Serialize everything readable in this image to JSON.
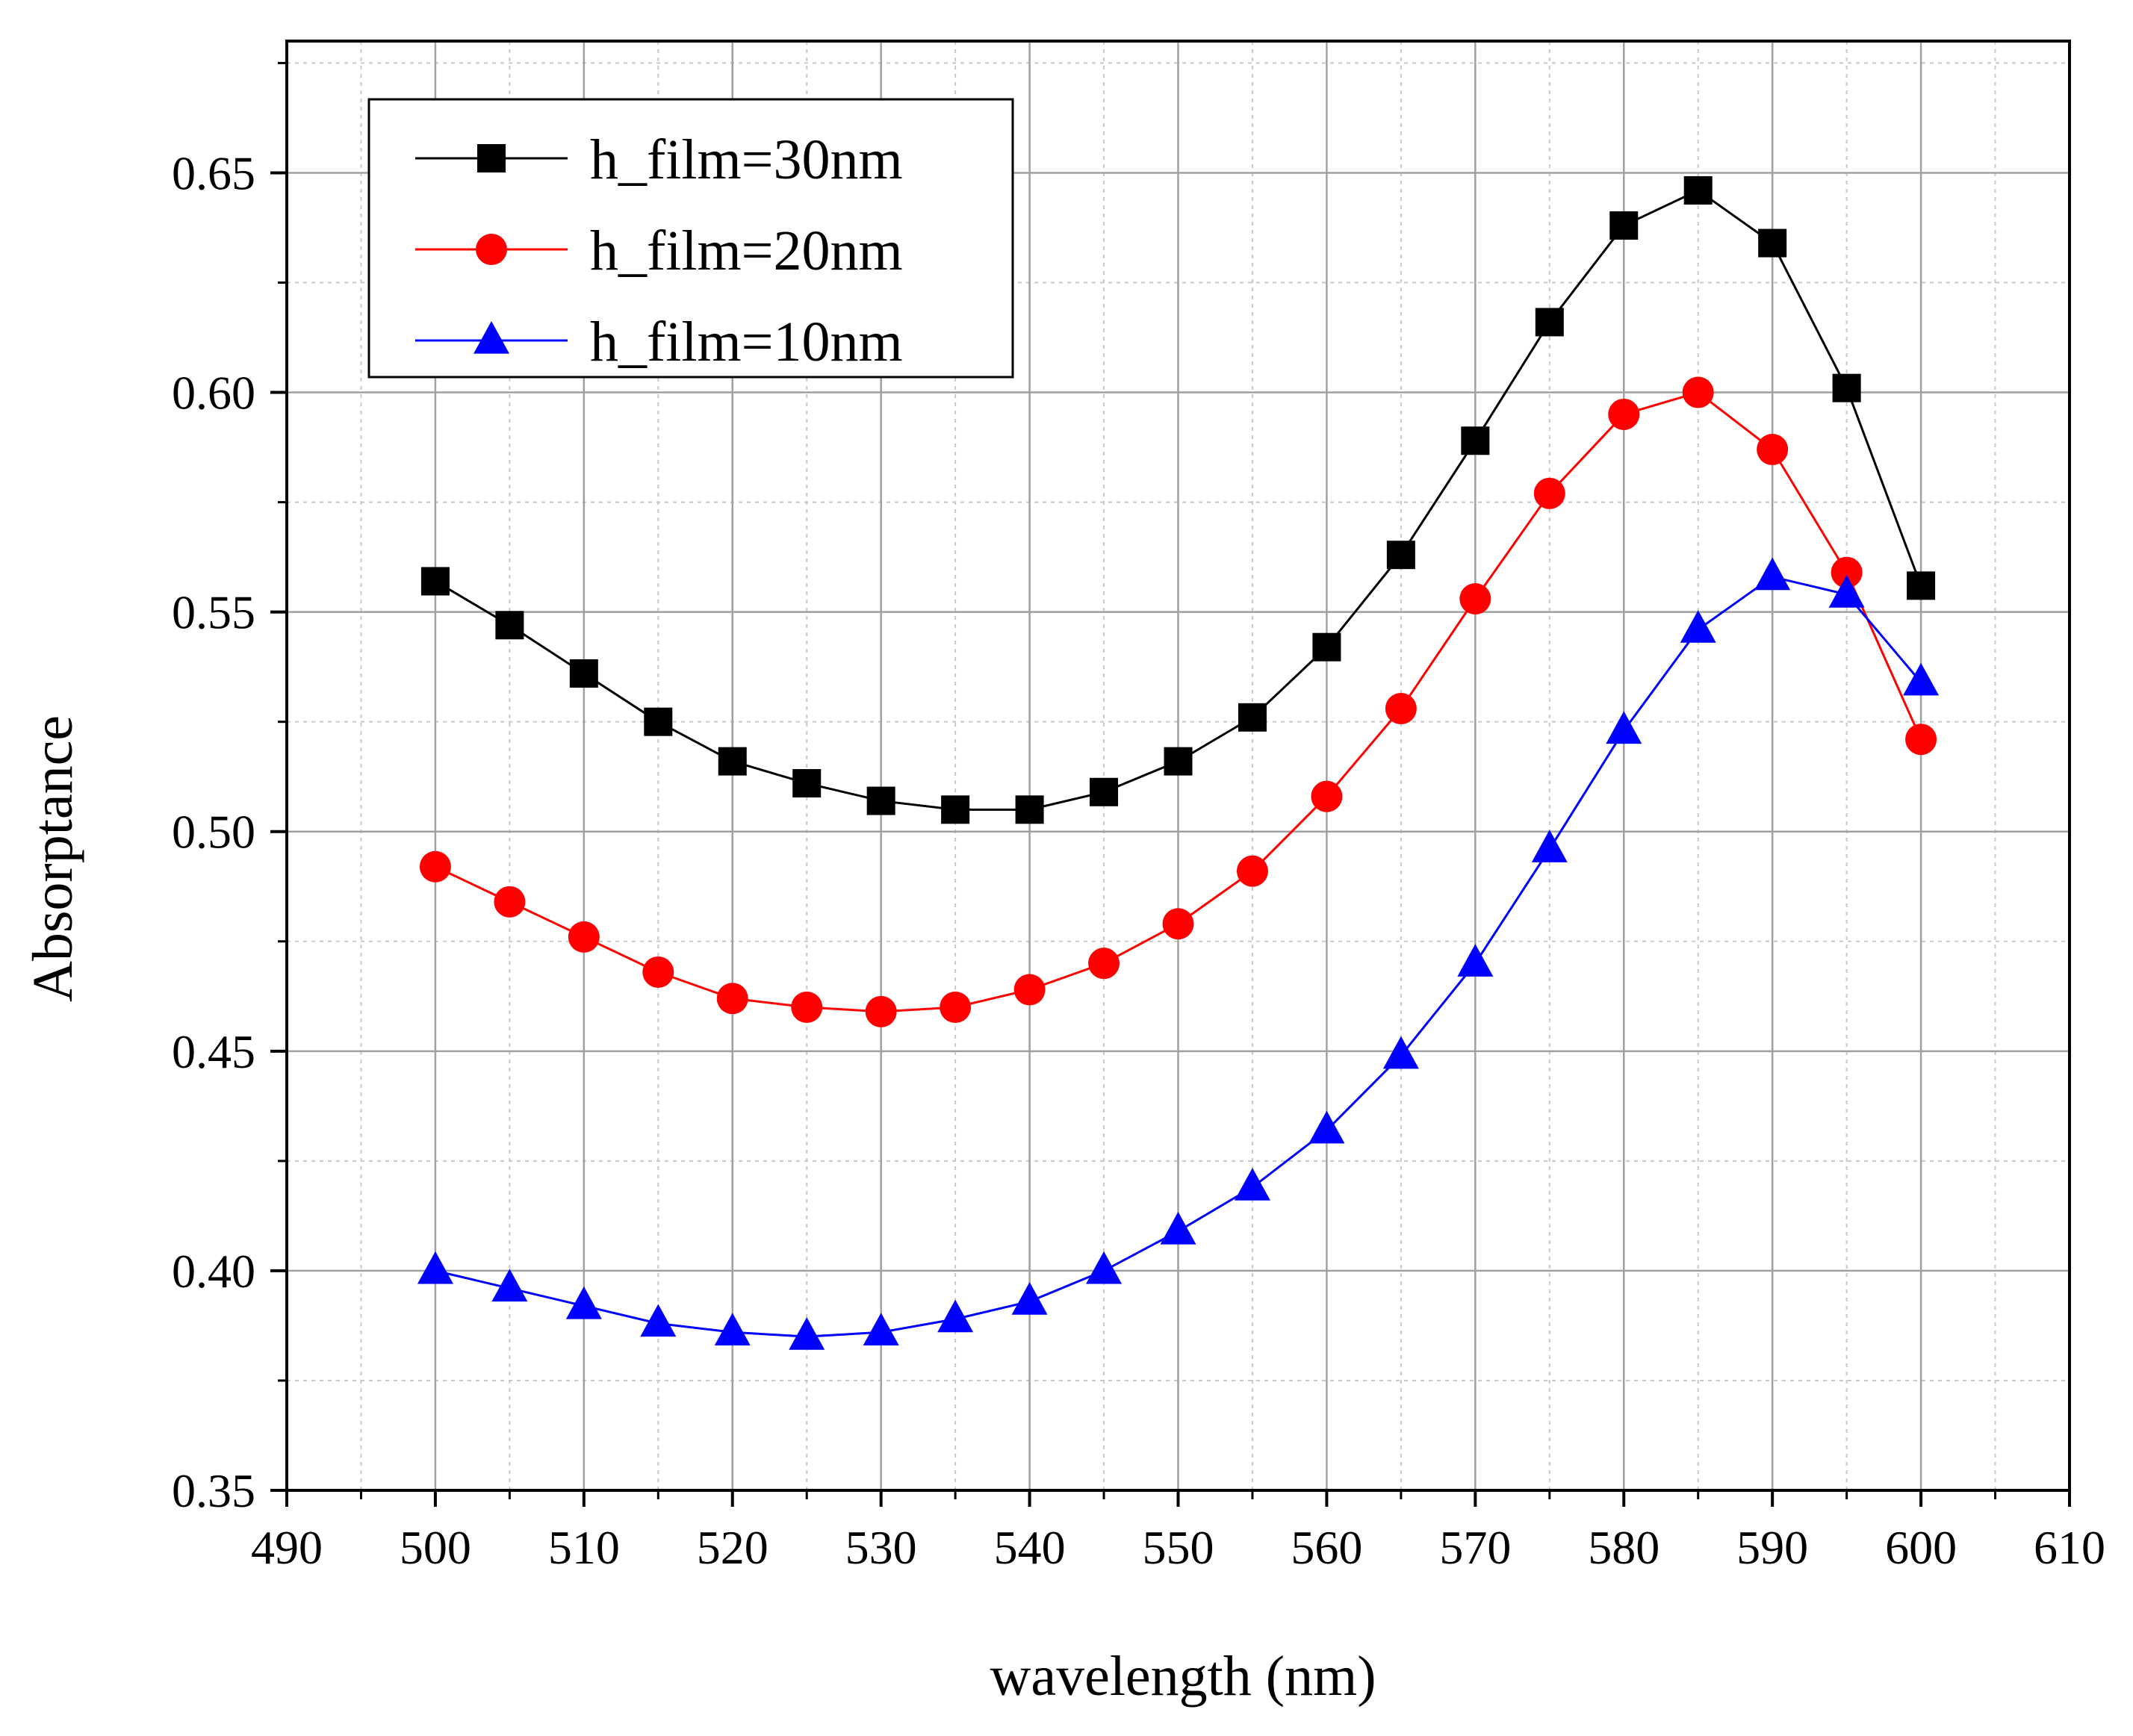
{
  "chart_data": {
    "type": "line",
    "title": "",
    "xlabel": "wavelength (nm)",
    "ylabel": "Absorptance",
    "xlim": [
      490,
      610
    ],
    "ylim": [
      0.35,
      0.68
    ],
    "xticks": [
      490,
      500,
      510,
      520,
      530,
      540,
      550,
      560,
      570,
      580,
      590,
      600,
      610
    ],
    "xtick_labels": [
      "490",
      "500",
      "510",
      "520",
      "530",
      "540",
      "550",
      "560",
      "570",
      "580",
      "590",
      "600",
      "610"
    ],
    "yticks": [
      0.35,
      0.4,
      0.45,
      0.5,
      0.55,
      0.6,
      0.65
    ],
    "ytick_labels": [
      "0.35",
      "0.40",
      "0.45",
      "0.50",
      "0.55",
      "0.60",
      "0.65"
    ],
    "grid": true,
    "legend_position": "top-left",
    "x": [
      500,
      505,
      510,
      515,
      520,
      525,
      530,
      535,
      540,
      545,
      550,
      555,
      560,
      565,
      570,
      575,
      580,
      585,
      590,
      595,
      600
    ],
    "series": [
      {
        "name": "h_film=30nm",
        "color": "#000000",
        "marker": "square",
        "values": [
          0.557,
          0.547,
          0.536,
          0.525,
          0.516,
          0.511,
          0.507,
          0.505,
          0.505,
          0.509,
          0.516,
          0.526,
          0.542,
          0.563,
          0.589,
          0.616,
          0.638,
          0.646,
          0.634,
          0.601,
          0.556
        ]
      },
      {
        "name": "h_film=20nm",
        "color": "#ff0000",
        "marker": "circle",
        "values": [
          0.492,
          0.484,
          0.476,
          0.468,
          0.462,
          0.46,
          0.459,
          0.46,
          0.464,
          0.47,
          0.479,
          0.491,
          0.508,
          0.528,
          0.553,
          0.577,
          0.595,
          0.6,
          0.587,
          0.559,
          0.521
        ]
      },
      {
        "name": "h_film=10nm",
        "color": "#0000ff",
        "marker": "triangle",
        "values": [
          0.4,
          0.396,
          0.392,
          0.388,
          0.386,
          0.385,
          0.386,
          0.389,
          0.393,
          0.4,
          0.409,
          0.419,
          0.432,
          0.449,
          0.47,
          0.496,
          0.523,
          0.546,
          0.558,
          0.554,
          0.534
        ]
      }
    ]
  }
}
